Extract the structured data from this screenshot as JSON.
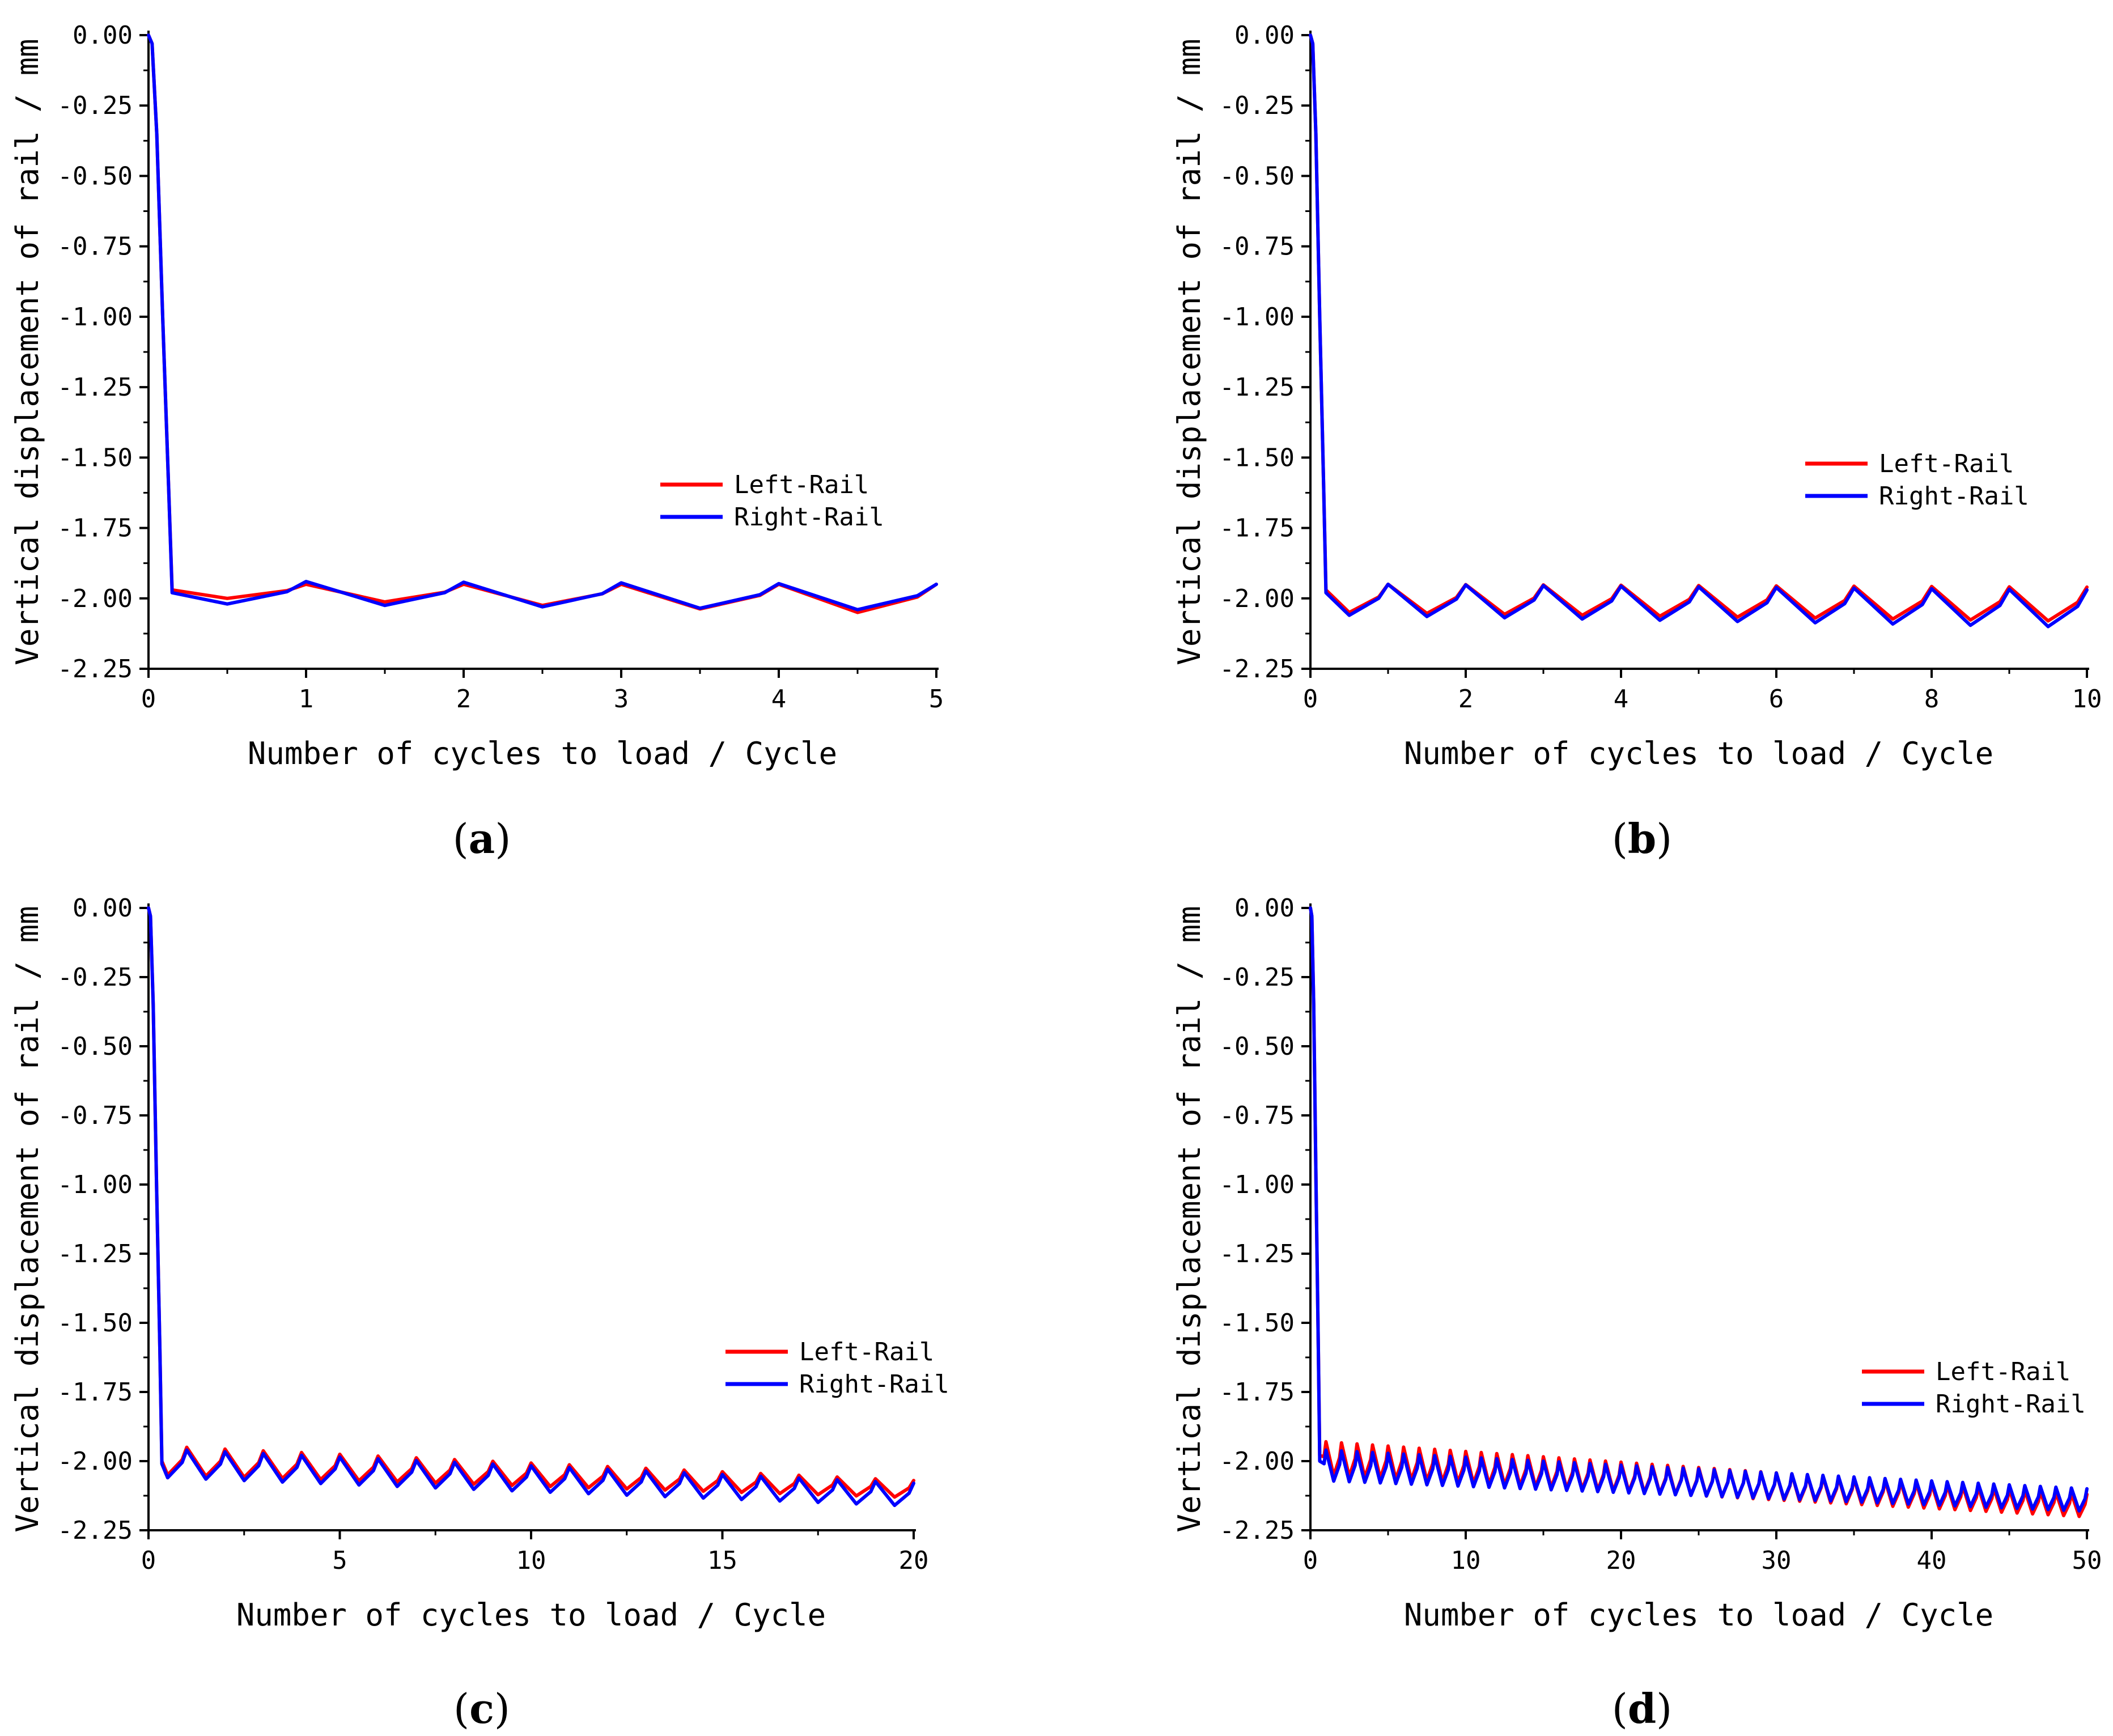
{
  "chart_data": [
    {
      "type": "line",
      "panel_label": "a",
      "xlabel": "Number of cycles to load / Cycle",
      "ylabel": "Vertical displacement of rail / mm",
      "xlim": [
        0,
        5
      ],
      "ylim": [
        -2.25,
        0.0
      ],
      "xticks": [
        0,
        1,
        2,
        3,
        4,
        5
      ],
      "xtick_labels": [
        "0",
        "1",
        "2",
        "3",
        "4",
        "5"
      ],
      "yticks": [
        0.0,
        -0.25,
        -0.5,
        -0.75,
        -1.0,
        -1.25,
        -1.5,
        -1.75,
        -2.0,
        -2.25
      ],
      "ytick_labels": [
        "0.00",
        "-0.25",
        "-0.50",
        "-0.75",
        "-1.00",
        "-1.25",
        "-1.50",
        "-1.75",
        "-2.00",
        "-2.25"
      ],
      "legend": {
        "position": "center-right"
      },
      "series": [
        {
          "name": "Left-Rail",
          "color": "#ff0000",
          "cycles": 5,
          "drop_end": 0.15,
          "plateau": -1.97,
          "peak_start": -1.95,
          "peak_end": -1.95,
          "trough_start": -2.0,
          "trough_end": -2.05
        },
        {
          "name": "Right-Rail",
          "color": "#0000ff",
          "cycles": 5,
          "drop_end": 0.15,
          "plateau": -1.98,
          "peak_start": -1.94,
          "peak_end": -1.95,
          "trough_start": -2.02,
          "trough_end": -2.04
        }
      ]
    },
    {
      "type": "line",
      "panel_label": "b",
      "xlabel": "Number of cycles to load / Cycle",
      "ylabel": "Vertical displacement of rail / mm",
      "xlim": [
        0,
        10
      ],
      "ylim": [
        -2.25,
        0.0
      ],
      "xticks": [
        0,
        2,
        4,
        6,
        8,
        10
      ],
      "xtick_labels": [
        "0",
        "2",
        "4",
        "6",
        "8",
        "10"
      ],
      "yticks": [
        0.0,
        -0.25,
        -0.5,
        -0.75,
        -1.0,
        -1.25,
        -1.5,
        -1.75,
        -2.0,
        -2.25
      ],
      "ytick_labels": [
        "0.00",
        "-0.25",
        "-0.50",
        "-0.75",
        "-1.00",
        "-1.25",
        "-1.50",
        "-1.75",
        "-2.00",
        "-2.25"
      ],
      "legend": {
        "position": "center-right"
      },
      "series": [
        {
          "name": "Left-Rail",
          "color": "#ff0000",
          "cycles": 10,
          "drop_end": 0.2,
          "plateau": -1.97,
          "peak_start": -1.95,
          "peak_end": -1.96,
          "trough_start": -2.05,
          "trough_end": -2.08
        },
        {
          "name": "Right-Rail",
          "color": "#0000ff",
          "cycles": 10,
          "drop_end": 0.2,
          "plateau": -1.98,
          "peak_start": -1.95,
          "peak_end": -1.97,
          "trough_start": -2.06,
          "trough_end": -2.1
        }
      ]
    },
    {
      "type": "line",
      "panel_label": "c",
      "xlabel": "Number of cycles to load / Cycle",
      "ylabel": "Vertical displacement of rail / mm",
      "xlim": [
        0,
        20
      ],
      "ylim": [
        -2.25,
        0.0
      ],
      "xticks": [
        0,
        5,
        10,
        15,
        20
      ],
      "xtick_labels": [
        "0",
        "5",
        "10",
        "15",
        "20"
      ],
      "yticks": [
        0.0,
        -0.25,
        -0.5,
        -0.75,
        -1.0,
        -1.25,
        -1.5,
        -1.75,
        -2.0,
        -2.25
      ],
      "ytick_labels": [
        "0.00",
        "-0.25",
        "-0.50",
        "-0.75",
        "-1.00",
        "-1.25",
        "-1.50",
        "-1.75",
        "-2.00",
        "-2.25"
      ],
      "legend": {
        "position": "center-right"
      },
      "series": [
        {
          "name": "Left-Rail",
          "color": "#ff0000",
          "cycles": 20,
          "drop_end": 0.35,
          "plateau": -2.0,
          "peak_start": -1.95,
          "peak_end": -2.07,
          "trough_start": -2.05,
          "trough_end": -2.13
        },
        {
          "name": "Right-Rail",
          "color": "#0000ff",
          "cycles": 20,
          "drop_end": 0.35,
          "plateau": -2.01,
          "peak_start": -1.96,
          "peak_end": -2.08,
          "trough_start": -2.06,
          "trough_end": -2.16
        }
      ]
    },
    {
      "type": "line",
      "panel_label": "d",
      "xlabel": "Number of cycles to load / Cycle",
      "ylabel": "Vertical displacement of rail / mm",
      "xlim": [
        0,
        50
      ],
      "ylim": [
        -2.25,
        0.0
      ],
      "xticks": [
        0,
        10,
        20,
        30,
        40,
        50
      ],
      "xtick_labels": [
        "0",
        "10",
        "20",
        "30",
        "40",
        "50"
      ],
      "yticks": [
        0.0,
        -0.25,
        -0.5,
        -0.75,
        -1.0,
        -1.25,
        -1.5,
        -1.75,
        -2.0,
        -2.25
      ],
      "ytick_labels": [
        "0.00",
        "-0.25",
        "-0.50",
        "-0.75",
        "-1.00",
        "-1.25",
        "-1.50",
        "-1.75",
        "-2.00",
        "-2.25"
      ],
      "legend": {
        "position": "center-right"
      },
      "series": [
        {
          "name": "Left-Rail",
          "color": "#ff0000",
          "cycles": 50,
          "drop_end": 0.6,
          "plateau": -1.98,
          "peak_start": -1.93,
          "peak_end": -2.12,
          "trough_start": -2.05,
          "trough_end": -2.2
        },
        {
          "name": "Right-Rail",
          "color": "#0000ff",
          "cycles": 50,
          "drop_end": 0.6,
          "plateau": -2.0,
          "peak_start": -1.96,
          "peak_end": -2.1,
          "trough_start": -2.07,
          "trough_end": -2.18
        }
      ]
    }
  ]
}
